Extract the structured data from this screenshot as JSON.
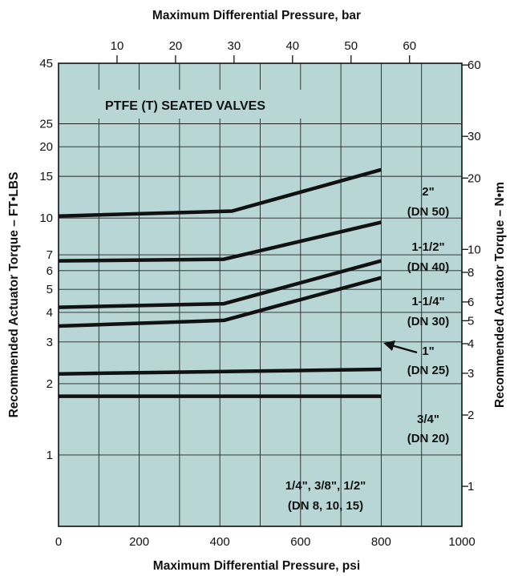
{
  "chart_data": {
    "type": "line",
    "title": "",
    "top_axis": {
      "label": "Maximum Differential Pressure, bar",
      "ticks": [
        10,
        20,
        30,
        40,
        50,
        60
      ]
    },
    "bottom_axis": {
      "label": "Maximum Differential Pressure, psi",
      "range": [
        0,
        1000
      ],
      "ticks": [
        0,
        200,
        400,
        600,
        800,
        1000
      ]
    },
    "left_axis": {
      "label": "Recommended Actuator Torque – FT•LBS",
      "scale": "log",
      "range": [
        0.5,
        45
      ],
      "ticks": [
        1,
        2,
        3,
        4,
        5,
        6,
        7,
        10,
        15,
        20,
        25,
        45
      ]
    },
    "right_axis": {
      "label": "Recommended Actuator Torque – N•m",
      "scale": "log",
      "range": [
        0.68,
        61
      ],
      "ticks": [
        1,
        2,
        3,
        4,
        5,
        6,
        8,
        10,
        20,
        30,
        60
      ]
    },
    "grid": true,
    "background": "#b9d6d6",
    "banner": "PTFE (T) SEATED VALVES",
    "series": [
      {
        "name": "2\" (DN 50)",
        "label_lines": [
          "2\"",
          "(DN 50)"
        ],
        "x": [
          0,
          430,
          800
        ],
        "y": [
          10.2,
          10.7,
          16.0
        ]
      },
      {
        "name": "1-1/2\" (DN 40)",
        "label_lines": [
          "1-1/2\"",
          "(DN 40)"
        ],
        "x": [
          0,
          410,
          800
        ],
        "y": [
          6.6,
          6.7,
          9.6
        ]
      },
      {
        "name": "1-1/4\" (DN 30)",
        "label_lines": [
          "1-1/4\"",
          "(DN 30)"
        ],
        "x": [
          0,
          410,
          800
        ],
        "y": [
          4.2,
          4.35,
          6.6
        ]
      },
      {
        "name": "1\" (DN 25)",
        "label_lines": [
          "1\"",
          "(DN 25)"
        ],
        "x": [
          0,
          410,
          800
        ],
        "y": [
          3.5,
          3.7,
          5.6
        ]
      },
      {
        "name": "3/4\" (DN 20)",
        "label_lines": [
          "3/4\"",
          "(DN 20)"
        ],
        "x": [
          0,
          800
        ],
        "y": [
          2.2,
          2.3
        ]
      },
      {
        "name": "1/4\", 3/8\", 1/2\" (DN 8, 10, 15)",
        "label_lines": [
          "1/4\", 3/8\", 1/2\"",
          "(DN 8, 10, 15)"
        ],
        "x": [
          0,
          800
        ],
        "y": [
          1.77,
          1.77
        ]
      }
    ]
  },
  "colors": {
    "plot_background": "#b9d6d6",
    "line": "#111111",
    "grid": "#222222"
  }
}
